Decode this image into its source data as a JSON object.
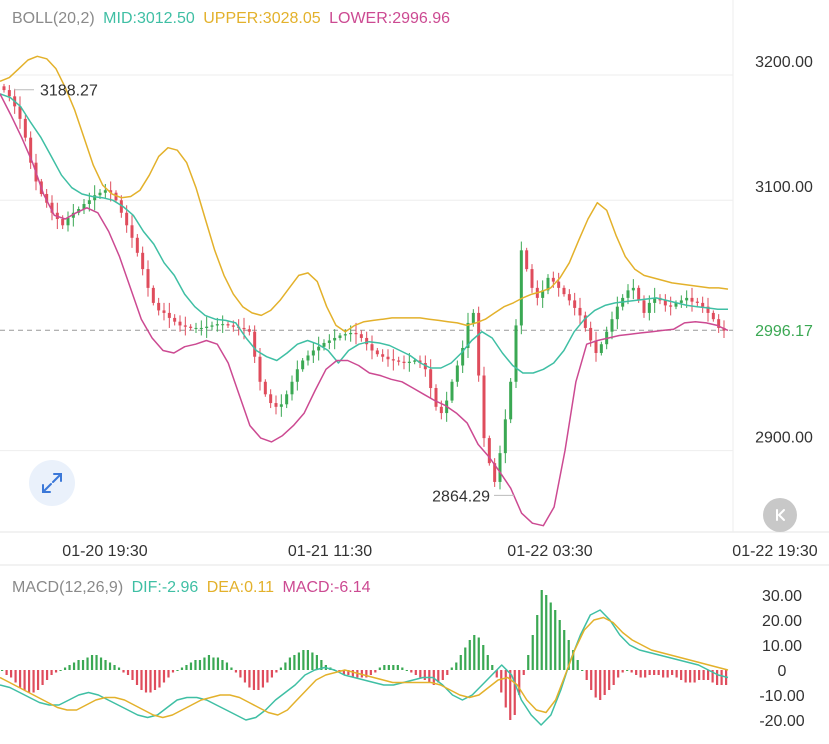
{
  "boll_legend": {
    "name": "BOLL(20,2)",
    "mid": "MID:3012.50",
    "upper": "UPPER:3028.05",
    "lower": "LOWER:2996.96"
  },
  "macd_legend": {
    "name": "MACD(12,26,9)",
    "dif": "DIF:-2.96",
    "dea": "DEA:0.11",
    "macd": "MACD:-6.14"
  },
  "colors": {
    "mid": "#3fbfa4",
    "upper": "#e3b12b",
    "lower": "#cc4a92",
    "up": "#3aa853",
    "down": "#df4c5c",
    "legend_name": "#8a8a8a"
  },
  "icons": {
    "expand": "expand-arrows-icon",
    "back": "collapse-back-icon"
  },
  "chart_data": [
    {
      "type": "candlestick",
      "title": "",
      "y_ticks": [
        "3200.00",
        "3100.00",
        "2900.00"
      ],
      "x_ticks": [
        "01-20 19:30",
        "01-21 11:30",
        "01-22 03:30",
        "01-22 19:30"
      ],
      "ylim": [
        2835,
        3228
      ],
      "current_price": "2996.17",
      "high_label": "3188.27",
      "low_label": "2864.29",
      "grid": true,
      "close": [
        3188,
        3183,
        3175,
        3165,
        3150,
        3130,
        3115,
        3105,
        3098,
        3090,
        3085,
        3080,
        3086,
        3090,
        3093,
        3097,
        3100,
        3104,
        3106,
        3108,
        3106,
        3100,
        3090,
        3080,
        3070,
        3058,
        3045,
        3030,
        3018,
        3012,
        3010,
        3006,
        3003,
        3000,
        2999,
        2998,
        2998,
        2998,
        2999,
        3000,
        3001,
        3001,
        3000,
        2999,
        2998,
        2997,
        2995,
        2975,
        2955,
        2945,
        2938,
        2935,
        2937,
        2945,
        2955,
        2965,
        2972,
        2976,
        2980,
        2983,
        2986,
        2988,
        2990,
        2992,
        2993,
        2994,
        2993,
        2990,
        2985,
        2980,
        2977,
        2975,
        2973,
        2972,
        2971,
        2970,
        2971,
        2972,
        2970,
        2965,
        2950,
        2935,
        2930,
        2940,
        2955,
        2968,
        2982,
        3002,
        3010,
        2960,
        2910,
        2890,
        2875,
        2898,
        2925,
        2955,
        3000,
        3060,
        3045,
        3030,
        3022,
        3028,
        3038,
        3035,
        3030,
        3025,
        3020,
        3014,
        3008,
        2998,
        2988,
        2978,
        2985,
        2995,
        3005,
        3015,
        3022,
        3028,
        3030,
        3020,
        3010,
        3018,
        3022,
        3020,
        3016,
        3015,
        3018,
        3020,
        3022,
        3019,
        3018,
        3015,
        3010,
        3005,
        2998,
        2996
      ],
      "boll_upper": [
        3195,
        3198,
        3205,
        3212,
        3215,
        3213,
        3205,
        3190,
        3172,
        3150,
        3128,
        3112,
        3105,
        3102,
        3103,
        3108,
        3120,
        3135,
        3142,
        3140,
        3130,
        3110,
        3085,
        3060,
        3040,
        3025,
        3015,
        3010,
        3008,
        3012,
        3020,
        3030,
        3040,
        3042,
        3035,
        3015,
        3000,
        2995,
        3000,
        3003,
        3004,
        3005,
        3006,
        3006,
        3006,
        3006,
        3005,
        3004,
        3003,
        3002,
        3000,
        3002,
        3005,
        3010,
        3015,
        3018,
        3022,
        3025,
        3027,
        3030,
        3038,
        3050,
        3068,
        3085,
        3098,
        3092,
        3072,
        3055,
        3045,
        3040,
        3038,
        3036,
        3034,
        3033,
        3032,
        3031,
        3030,
        3030,
        3029
      ],
      "boll_mid": [
        3185,
        3182,
        3175,
        3162,
        3150,
        3135,
        3120,
        3110,
        3105,
        3103,
        3102,
        3100,
        3095,
        3088,
        3075,
        3065,
        3050,
        3040,
        3025,
        3015,
        3008,
        3005,
        3004,
        3002,
        2990,
        2980,
        2975,
        2972,
        2978,
        2985,
        2988,
        2985,
        2980,
        2970,
        2980,
        2985,
        2987,
        2986,
        2984,
        2980,
        2976,
        2970,
        2966,
        2966,
        2970,
        2978,
        2988,
        2995,
        2990,
        2978,
        2968,
        2962,
        2962,
        2965,
        2970,
        2980,
        2995,
        3005,
        3012,
        3016,
        3018,
        3019,
        3020,
        3021,
        3022,
        3020,
        3018,
        3016,
        3015,
        3014,
        3013,
        3013
      ],
      "boll_lower": [
        3185,
        3168,
        3150,
        3130,
        3105,
        3088,
        3085,
        3090,
        3094,
        3090,
        3075,
        3055,
        3030,
        3005,
        2990,
        2980,
        2978,
        2983,
        2985,
        2988,
        2985,
        2970,
        2945,
        2920,
        2910,
        2907,
        2912,
        2920,
        2930,
        2948,
        2965,
        2972,
        2972,
        2968,
        2962,
        2960,
        2957,
        2955,
        2950,
        2945,
        2940,
        2936,
        2930,
        2922,
        2905,
        2895,
        2883,
        2870,
        2850,
        2842,
        2840,
        2855,
        2900,
        2955,
        2985,
        2988,
        2990,
        2992,
        2993,
        2994,
        2995,
        2996,
        2997,
        3002,
        3003,
        3002,
        3000,
        2996
      ]
    },
    {
      "type": "macd",
      "y_ticks": [
        "30.00",
        "20.00",
        "10.00",
        "0",
        "-10.00",
        "-20.00"
      ],
      "ylim": [
        -24,
        34
      ],
      "histogram": [
        0,
        -2,
        -3,
        -5,
        -7,
        -8,
        -9,
        -9,
        -8,
        -6,
        -4,
        -2,
        -1,
        0,
        1,
        2,
        3,
        4,
        4,
        5,
        6,
        6,
        5,
        4,
        3,
        2,
        1,
        -1,
        -2,
        -4,
        -6,
        -8,
        -9,
        -9,
        -8,
        -7,
        -5,
        -3,
        -1,
        0,
        1,
        2,
        3,
        4,
        4,
        5,
        6,
        5,
        5,
        4,
        3,
        1,
        -1,
        -3,
        -5,
        -7,
        -8,
        -8,
        -7,
        -5,
        -3,
        -1,
        1,
        3,
        5,
        6,
        7,
        8,
        8,
        7,
        6,
        4,
        2,
        1,
        0,
        -1,
        -2,
        -2,
        -3,
        -3,
        -3,
        -3,
        -2,
        -1,
        1,
        2,
        2,
        2,
        2,
        1,
        0,
        -1,
        -2,
        -3,
        -4,
        -5,
        -6,
        -5,
        -4,
        -2,
        1,
        3,
        6,
        9,
        12,
        14,
        13,
        10,
        6,
        2,
        -3,
        -9,
        -15,
        -20,
        -18,
        -10,
        -2,
        6,
        14,
        22,
        32,
        30,
        27,
        24,
        20,
        16,
        12,
        8,
        4,
        0,
        -4,
        -8,
        -11,
        -12,
        -10,
        -8,
        -6,
        -3,
        -1,
        0,
        -1,
        -2,
        -3,
        -3,
        -2,
        -2,
        -2,
        -3,
        -3,
        -2,
        -3,
        -4,
        -5,
        -5,
        -5,
        -4,
        -4,
        -4,
        -5,
        -6,
        -6,
        -6
      ],
      "dif": [
        -6,
        -7,
        -9,
        -11,
        -13,
        -14,
        -14,
        -12,
        -10,
        -9,
        -10,
        -12,
        -14,
        -16,
        -18,
        -19,
        -18,
        -15,
        -12,
        -11,
        -11,
        -12,
        -14,
        -16,
        -18,
        -20,
        -19,
        -16,
        -12,
        -9,
        -6,
        -2,
        0,
        1,
        0,
        -2,
        -3,
        -4,
        -5,
        -6,
        -6,
        -5,
        -4,
        -3,
        -3,
        -6,
        -10,
        -12,
        -10,
        -6,
        -2,
        2,
        -2,
        -12,
        -18,
        -22,
        -18,
        -8,
        4,
        14,
        22,
        24,
        20,
        14,
        10,
        8,
        7,
        6,
        5,
        4,
        3,
        2,
        0,
        -2,
        -3
      ],
      "dea": [
        -3,
        -5,
        -7,
        -9,
        -11,
        -13,
        -15,
        -16,
        -16,
        -14,
        -12,
        -11,
        -11,
        -12,
        -14,
        -16,
        -18,
        -19,
        -18,
        -16,
        -14,
        -12,
        -11,
        -10,
        -10,
        -11,
        -13,
        -15,
        -17,
        -18,
        -16,
        -12,
        -8,
        -4,
        -2,
        -1,
        0,
        -1,
        -2,
        -3,
        -4,
        -5,
        -5,
        -5,
        -5,
        -5,
        -6,
        -8,
        -10,
        -11,
        -10,
        -7,
        -4,
        -3,
        -6,
        -12,
        -16,
        -17,
        -12,
        -2,
        8,
        16,
        20,
        21,
        19,
        15,
        12,
        10,
        8,
        7,
        6,
        5,
        4,
        3,
        2,
        1,
        0
      ]
    }
  ]
}
